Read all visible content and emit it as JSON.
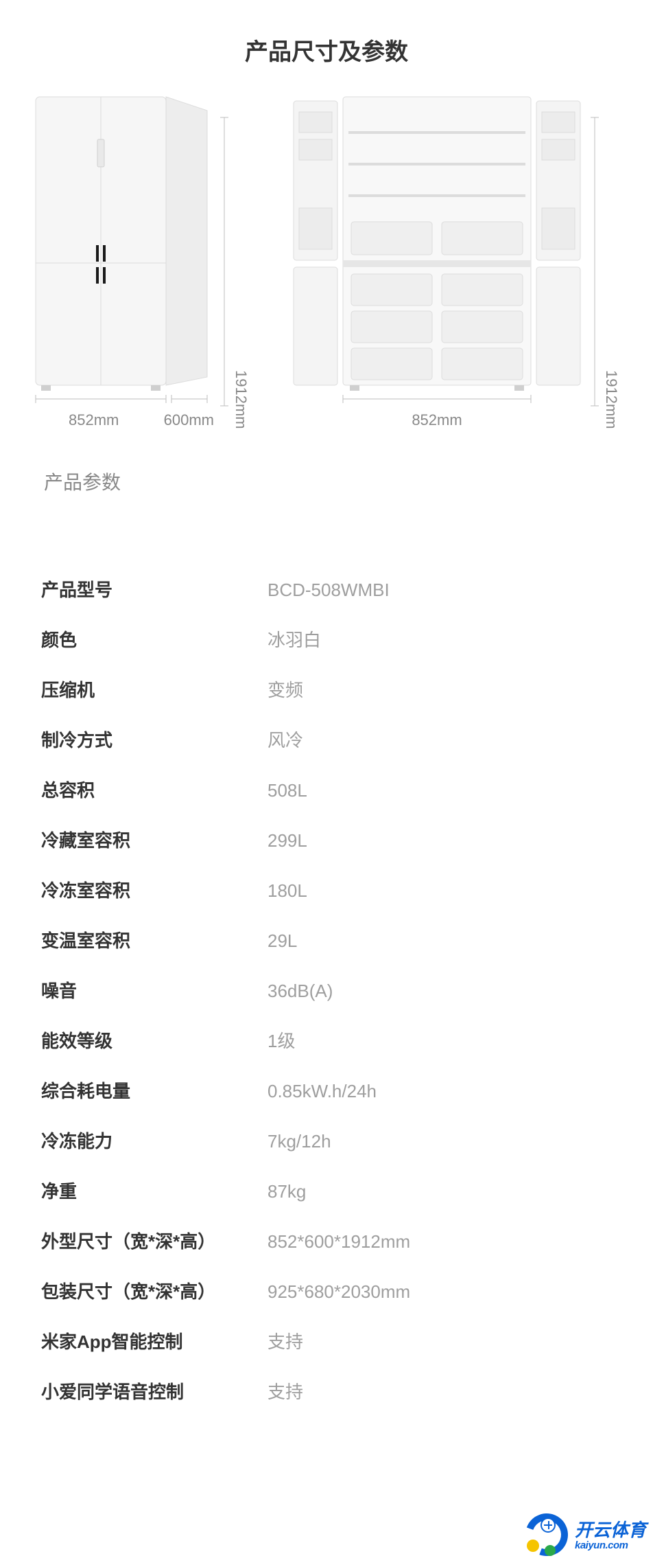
{
  "title": "产品尺寸及参数",
  "diagram": {
    "closed": {
      "width_label": "852mm",
      "depth_label": "600mm",
      "height_label": "1912mm"
    },
    "open": {
      "width_label": "852mm",
      "height_label": "1912mm"
    },
    "fridge_color": "#f2f2f2",
    "line_color": "#cfcfcf",
    "handle_color": "#1a1a1a",
    "shelf_color": "#e8e8e8",
    "label_color": "#888888"
  },
  "section_title": "产品参数",
  "specs": [
    {
      "label": "产品型号",
      "value": "BCD-508WMBI"
    },
    {
      "label": "颜色",
      "value": "冰羽白"
    },
    {
      "label": "压缩机",
      "value": "变频"
    },
    {
      "label": "制冷方式",
      "value": "风冷"
    },
    {
      "label": "总容积",
      "value": "508L"
    },
    {
      "label": "冷藏室容积",
      "value": "299L"
    },
    {
      "label": "冷冻室容积",
      "value": "180L"
    },
    {
      "label": "变温室容积",
      "value": "29L"
    },
    {
      "label": "噪音",
      "value": "36dB(A)"
    },
    {
      "label": "能效等级",
      "value": "1级"
    },
    {
      "label": "综合耗电量",
      "value": "0.85kW.h/24h"
    },
    {
      "label": "冷冻能力",
      "value": "7kg/12h"
    },
    {
      "label": "净重",
      "value": "87kg"
    },
    {
      "label": "外型尺寸（宽*深*高）",
      "value": "852*600*1912mm"
    },
    {
      "label": "包装尺寸（宽*深*高）",
      "value": "925*680*2030mm"
    },
    {
      "label": "米家App智能控制",
      "value": "支持"
    },
    {
      "label": "小爱同学语音控制",
      "value": "支持"
    }
  ],
  "watermark": {
    "cn": "开云体育",
    "en": "kaiyun.com",
    "brand_color": "#0b63d6"
  }
}
